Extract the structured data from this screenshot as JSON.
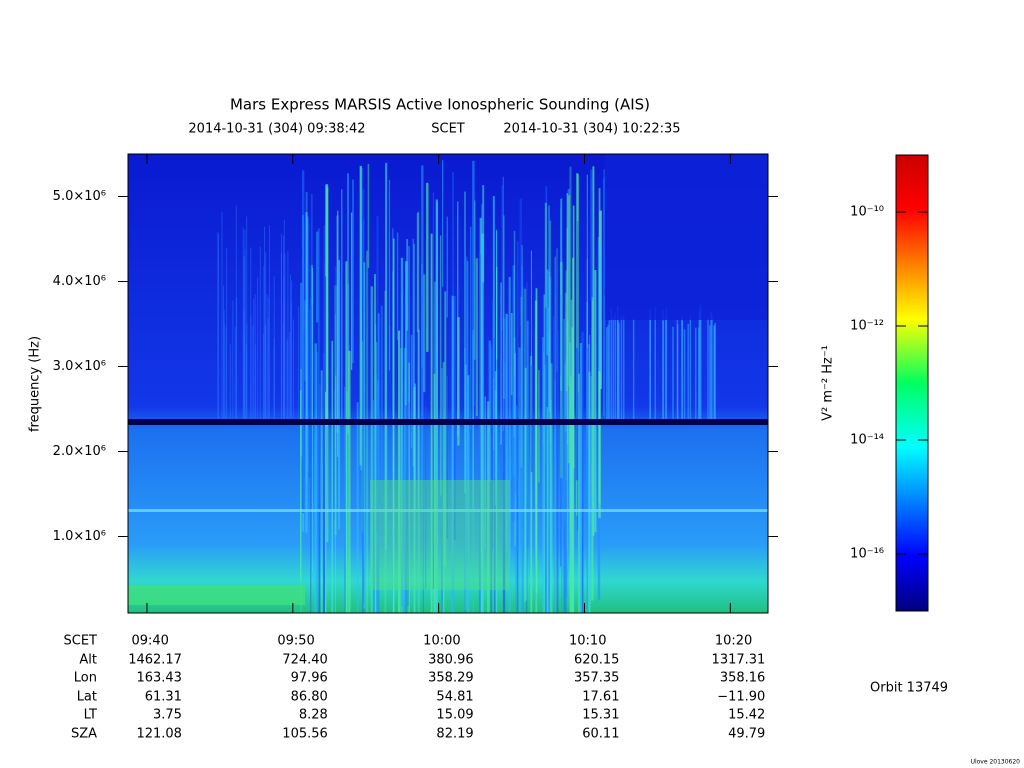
{
  "chart_data": {
    "type": "spectrogram",
    "title": "Mars Express MARSIS Active Ionospheric Sounding (AIS)",
    "subtitle_start": "2014-10-31 (304) 09:38:42",
    "subtitle_frame": "SCET",
    "subtitle_end": "2014-10-31 (304) 10:22:35",
    "ylabel": "frequency (Hz)",
    "ylim": [
      100000,
      5500000
    ],
    "yticks": [
      {
        "value": 1000000,
        "label": "1.0×10⁶"
      },
      {
        "value": 2000000,
        "label": "2.0×10⁶"
      },
      {
        "value": 3000000,
        "label": "3.0×10⁶"
      },
      {
        "value": 4000000,
        "label": "4.0×10⁶"
      },
      {
        "value": 5000000,
        "label": "5.0×10⁶"
      }
    ],
    "xticks": [
      "09:40",
      "09:50",
      "10:00",
      "10:10",
      "10:20"
    ],
    "colorbar": {
      "label": "V² m⁻² Hz⁻¹",
      "log_scale": true,
      "lim": [
        1e-17,
        1e-09
      ],
      "ticks": [
        {
          "value": 1e-10,
          "label": "10⁻¹⁰"
        },
        {
          "value": 1e-12,
          "label": "10⁻¹²"
        },
        {
          "value": 1e-14,
          "label": "10⁻¹⁴"
        },
        {
          "value": 1e-16,
          "label": "10⁻¹⁶"
        }
      ]
    },
    "ephemeris": {
      "time_label": "SCET",
      "rows": [
        {
          "name": "Alt",
          "values": [
            "1462.17",
            "724.40",
            "380.96",
            "620.15",
            "1317.31"
          ]
        },
        {
          "name": "Lon",
          "values": [
            "163.43",
            "97.96",
            "358.29",
            "357.35",
            "358.16"
          ]
        },
        {
          "name": "Lat",
          "values": [
            "61.31",
            "86.80",
            "54.81",
            "17.61",
            "−11.90"
          ]
        },
        {
          "name": "LT",
          "values": [
            "3.75",
            "8.28",
            "15.09",
            "15.31",
            "15.42"
          ]
        },
        {
          "name": "SZA",
          "values": [
            "121.08",
            "105.56",
            "82.19",
            "60.11",
            "49.79"
          ]
        }
      ]
    },
    "orbit": "Orbit 13749",
    "footer": "Ulove 20130620"
  }
}
